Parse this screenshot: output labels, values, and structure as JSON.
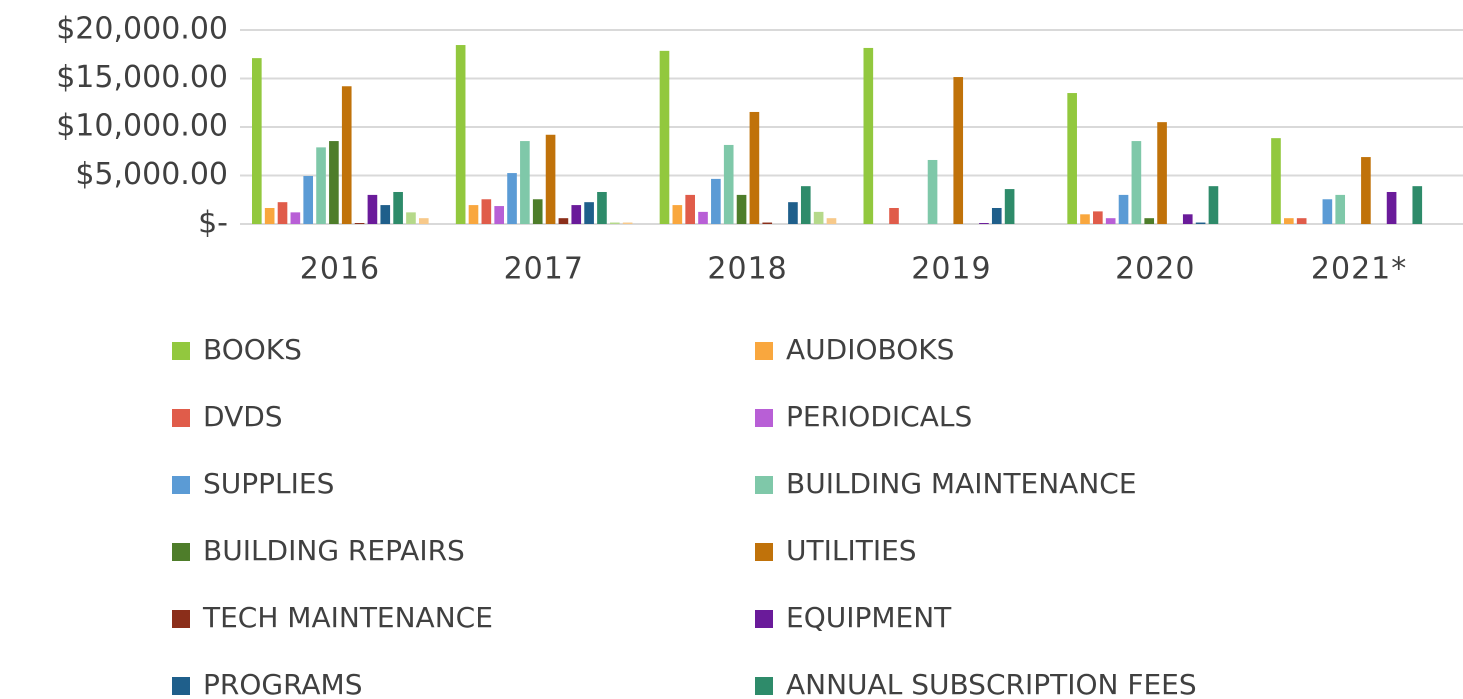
{
  "chart_data": {
    "type": "bar",
    "categories": [
      "2016",
      "2017",
      "2018",
      "2019",
      "2020",
      "2021*"
    ],
    "ylim": [
      0,
      20000
    ],
    "yticks": [
      {
        "value": 0,
        "label": "$-"
      },
      {
        "value": 5000,
        "label": "$5,000.00"
      },
      {
        "value": 10000,
        "label": "$10,000.00"
      },
      {
        "value": 15000,
        "label": "$15,000.00"
      },
      {
        "value": 20000,
        "label": "$20,000.00"
      }
    ],
    "grid": true,
    "legend": "bottom",
    "series": [
      {
        "name": "BOOKS",
        "color": "#92c83e",
        "values": [
          17100,
          18450,
          17850,
          18150,
          13500,
          8850
        ]
      },
      {
        "name": "AUDIOBOKS",
        "color": "#f9a73e",
        "values": [
          1650,
          1950,
          1950,
          0,
          1000,
          600
        ]
      },
      {
        "name": "DVDS",
        "color": "#e05c4a",
        "values": [
          2250,
          2550,
          3000,
          1650,
          1300,
          600
        ]
      },
      {
        "name": "PERIODICALS",
        "color": "#b85fd6",
        "values": [
          1200,
          1850,
          1250,
          0,
          600,
          0
        ]
      },
      {
        "name": "SUPPLIES",
        "color": "#5b9bd5",
        "values": [
          4950,
          5250,
          4650,
          0,
          3000,
          2550
        ]
      },
      {
        "name": "BUILDING MAINTENANCE",
        "color": "#7fc8a9",
        "values": [
          7900,
          8550,
          8150,
          6600,
          8550,
          3000
        ]
      },
      {
        "name": "BUILDING REPAIRS",
        "color": "#4e7d2a",
        "values": [
          8550,
          2550,
          3000,
          0,
          600,
          0
        ]
      },
      {
        "name": "UTILITIES",
        "color": "#c0720a",
        "values": [
          14200,
          9200,
          11550,
          15150,
          10500,
          6900
        ]
      },
      {
        "name": "TECH MAINTENANCE",
        "color": "#8b2e1a",
        "values": [
          100,
          600,
          150,
          0,
          0,
          0
        ]
      },
      {
        "name": "EQUIPMENT",
        "color": "#6a1b9a",
        "values": [
          3000,
          1950,
          0,
          100,
          1000,
          3300
        ]
      },
      {
        "name": "PROGRAMS",
        "color": "#1f5f8b",
        "values": [
          1950,
          2250,
          2250,
          1650,
          150,
          0
        ]
      },
      {
        "name": "ANNUAL SUBSCRIPTION FEES",
        "color": "#2e8b6a",
        "values": [
          3300,
          3300,
          3900,
          3600,
          3900,
          3900
        ]
      },
      {
        "name": null,
        "color": "#b5d98a",
        "values": [
          1200,
          150,
          1250,
          0,
          0,
          0
        ]
      },
      {
        "name": null,
        "color": "#f7c98a",
        "values": [
          600,
          150,
          600,
          0,
          0,
          0
        ]
      }
    ]
  }
}
